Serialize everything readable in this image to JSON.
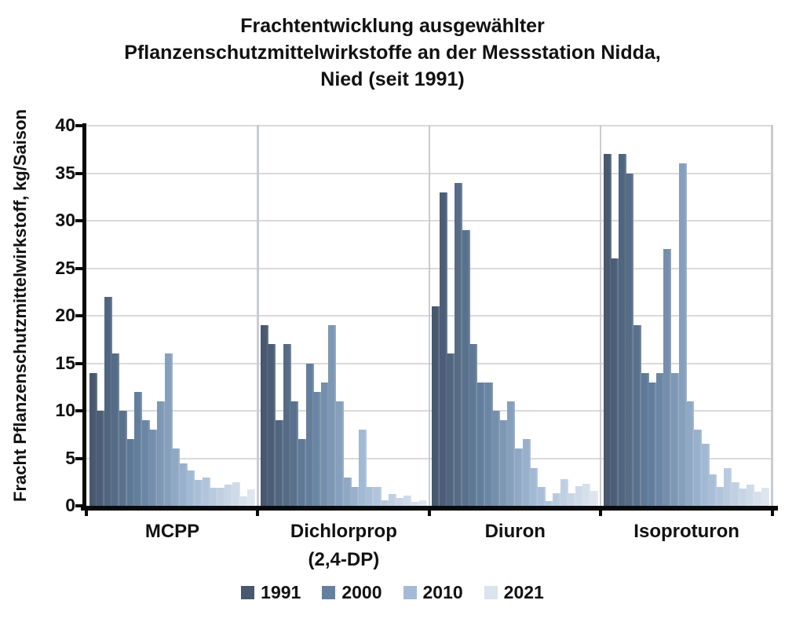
{
  "title": {
    "line1": "Frachtentwicklung ausgewählter",
    "line2": "Pflanzenschutzmittelwirkstoffe an der Messstation Nidda,",
    "line3": "Nied (seit 1991)"
  },
  "y_axis": {
    "label": "Fracht Pflanzenschutzmittelwirkstoff, kg/Saison",
    "ticks": [
      0,
      5,
      10,
      15,
      20,
      25,
      30,
      35,
      40
    ],
    "max": 40
  },
  "legend": {
    "entries": [
      {
        "label": "1991",
        "color": "#47586f"
      },
      {
        "label": "2000",
        "color": "#64809f"
      },
      {
        "label": "2010",
        "color": "#a4bbd5"
      },
      {
        "label": "2021",
        "color": "#dbe3ed"
      }
    ]
  },
  "chart_data": {
    "type": "bar",
    "title": "Frachtentwicklung ausgewählter Pflanzenschutzmittelwirkstoffe an der Messstation Nidda, Nied (seit 1991)",
    "ylabel": "Fracht Pflanzenschutzmittelwirkstoff, kg/Saison",
    "ylim": [
      0,
      40
    ],
    "yticks": [
      0,
      5,
      10,
      15,
      20,
      25,
      30,
      35,
      40
    ],
    "grid": "horizontal",
    "legend_position": "bottom",
    "legend_years": [
      "1991",
      "2000",
      "2010",
      "2021"
    ],
    "bar_color_gradient": {
      "note": "within each substance group, bars run from 1991 (dark blue) to 2021 (very light blue-gray)",
      "stops": [
        [
          0,
          "#47586f"
        ],
        [
          0.3,
          "#64809f"
        ],
        [
          0.633,
          "#a4bbd5"
        ],
        [
          1,
          "#dee5ee"
        ]
      ]
    },
    "groups": [
      {
        "label": "MCPP",
        "values": [
          14,
          10,
          22,
          16,
          10,
          7,
          12,
          9,
          8,
          11,
          16,
          6,
          4.5,
          3.7,
          2.7,
          3,
          1.9,
          1.9,
          2.2,
          2.5,
          1,
          1.7
        ]
      },
      {
        "label": "Dichlorprop (2,4-DP)",
        "label_line1": "Dichlorprop",
        "label_line2": "(2,4-DP)",
        "values": [
          19,
          17,
          9,
          17,
          11,
          7,
          15,
          12,
          13,
          19,
          11,
          3,
          2,
          8,
          2,
          2,
          0.6,
          1.2,
          0.8,
          1.1,
          0.4,
          0.6
        ]
      },
      {
        "label": "Diuron",
        "values": [
          21,
          33,
          16,
          34,
          29,
          17,
          13,
          13,
          10,
          9,
          11,
          6,
          7,
          4,
          2,
          0.5,
          1.3,
          2.8,
          1.3,
          2.1,
          2.3,
          1.6
        ]
      },
      {
        "label": "Isoproturon",
        "values": [
          37,
          26,
          37,
          35,
          19,
          14,
          13,
          14,
          27,
          14,
          36,
          11,
          8,
          6.5,
          3.3,
          2,
          4,
          2.5,
          1.8,
          2.2,
          1.5,
          1.9
        ]
      }
    ]
  }
}
